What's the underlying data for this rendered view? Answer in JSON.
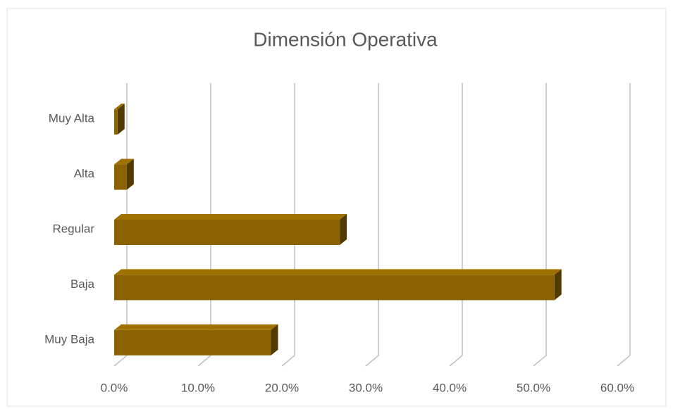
{
  "chart_data": {
    "type": "bar3d_horizontal",
    "title": "Dimensión Operativa",
    "categories": [
      "Muy Alta",
      "Alta",
      "Regular",
      "Baja",
      "Muy Baja"
    ],
    "values": [
      0.4,
      1.5,
      26.9,
      52.5,
      18.7
    ],
    "color": "#8a6300",
    "xlim": [
      0,
      60
    ],
    "xticks": [
      {
        "value": 0,
        "label": "0.0%"
      },
      {
        "value": 10,
        "label": "10.0%"
      },
      {
        "value": 20,
        "label": "20.0%"
      },
      {
        "value": 30,
        "label": "30.0%"
      },
      {
        "value": 40,
        "label": "40.0%"
      },
      {
        "value": 50,
        "label": "50.0%"
      },
      {
        "value": 60,
        "label": "60.0%"
      }
    ],
    "grid": true
  }
}
